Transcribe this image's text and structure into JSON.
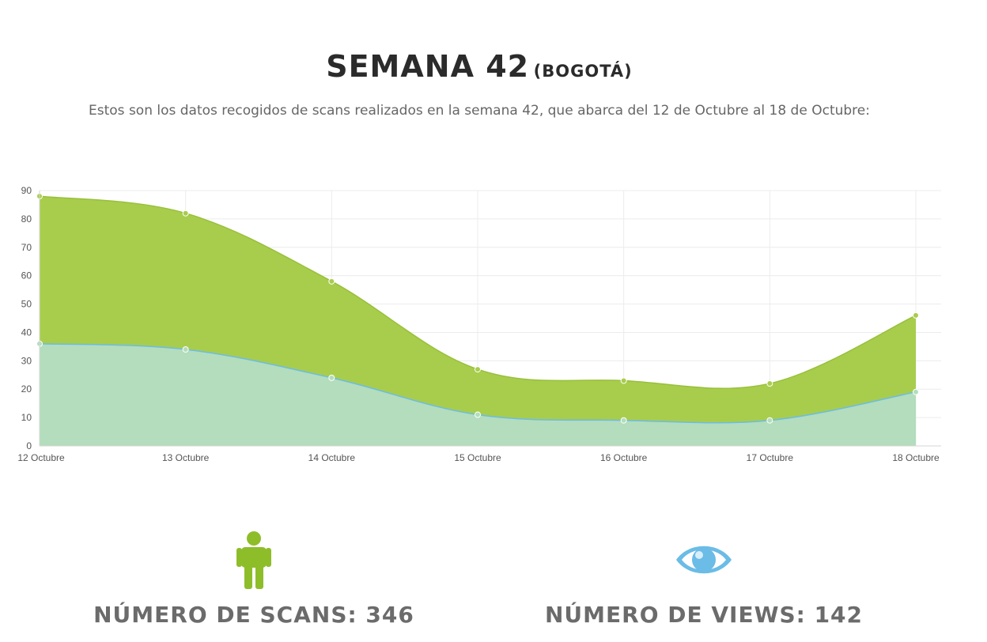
{
  "header": {
    "title": "SEMANA 42",
    "title_suffix": "(BOGOTÁ)",
    "description": "Estos son los datos recogidos de scans realizados en la semana 42, que abarca del 12 de Octubre al 18 de Octubre:"
  },
  "chart_data": {
    "type": "area",
    "title": "",
    "xlabel": "",
    "ylabel": "",
    "categories": [
      "12 Octubre",
      "13 Octubre",
      "14 Octubre",
      "15 Octubre",
      "16 Octubre",
      "17 Octubre",
      "18 Octubre"
    ],
    "ylim": [
      0,
      90
    ],
    "yticks": [
      0,
      10,
      20,
      30,
      40,
      50,
      60,
      70,
      80,
      90
    ],
    "grid": true,
    "series": [
      {
        "values": [
          88,
          82,
          58,
          27,
          23,
          22,
          46
        ],
        "color": "#a8cd4c",
        "stroke": "#97c03a"
      },
      {
        "values": [
          36,
          34,
          24,
          11,
          9,
          9,
          19
        ],
        "color": "#b3ddbc",
        "stroke": "#6bbce6"
      }
    ]
  },
  "stats": {
    "scans": {
      "label": "NÚMERO DE SCANS: 346",
      "icon": "person-icon",
      "color": "#8ebd2a"
    },
    "views": {
      "label": "NÚMERO DE VIEWS: 142",
      "icon": "eye-icon",
      "color": "#6bbce6"
    }
  }
}
